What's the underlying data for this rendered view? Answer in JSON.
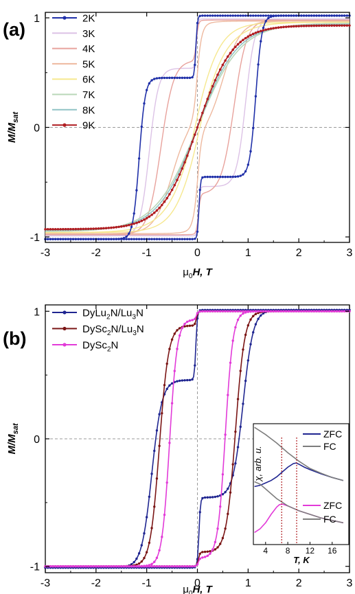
{
  "chart_data": [
    {
      "panel_label": "(a)",
      "type": "line",
      "ylabel": "M/M_sat",
      "ylabel_main": "M/M",
      "ylabel_sub": "sat",
      "xlabel": "μ0H, T",
      "xlabel_prefix": "μ",
      "xlabel_sub": "0",
      "xlabel_main": "H, T",
      "xlim": [
        -3,
        3
      ],
      "ylim": [
        -1.05,
        1.05
      ],
      "x_ticks": [
        "-3",
        "-2",
        "-1",
        "0",
        "1",
        "2",
        "3"
      ],
      "y_ticks": [
        "-1",
        "0",
        "1"
      ],
      "zero_lines": true,
      "legend_position": "top-left",
      "series": [
        {
          "name": "2K",
          "color": "#1f2fa8",
          "markers": true,
          "Ms": 1.02,
          "Hc": 0.03,
          "w": 0.03,
          "a": 0.27,
          "Hc2": 1.15,
          "w2": 0.12,
          "a2": 0.7,
          "b": 0.0
        },
        {
          "name": "3K",
          "color": "#dcc2e6",
          "markers": false,
          "Ms": 0.99,
          "Hc": 0.02,
          "w": 0.03,
          "a": 0.2,
          "Hc2": 0.95,
          "w2": 0.18,
          "a2": 0.68,
          "b": 0.0
        },
        {
          "name": "4K",
          "color": "#e8a29c",
          "markers": false,
          "Ms": 0.98,
          "Hc": 0.02,
          "w": 0.04,
          "a": 0.15,
          "Hc2": 0.72,
          "w2": 0.25,
          "a2": 0.65,
          "b": 0.0
        },
        {
          "name": "5K",
          "color": "#eeb89e",
          "markers": false,
          "Ms": 0.97,
          "Hc": 0.01,
          "w": 0.05,
          "a": 0.1,
          "Hc2": 0.5,
          "w2": 0.35,
          "a2": 0.55,
          "b": 0.1
        },
        {
          "name": "6K",
          "color": "#f6e88f",
          "markers": false,
          "Ms": 0.96,
          "Hc": 0.0,
          "w": 0.1,
          "a": 0.03,
          "Hc2": 0.25,
          "w2": 0.7,
          "a2": 0.3,
          "b": 0.45
        },
        {
          "name": "7K",
          "color": "#b9d7b8",
          "markers": false,
          "Ms": 0.95,
          "Hc": 0.0,
          "w": 0.2,
          "a": 0.0,
          "Hc2": 0.0,
          "w2": 1.0,
          "a2": 0.0,
          "b": 0.85
        },
        {
          "name": "8K",
          "color": "#8fc2c5",
          "markers": false,
          "Ms": 0.94,
          "Hc": 0.0,
          "w": 0.2,
          "a": 0.0,
          "Hc2": 0.0,
          "w2": 1.0,
          "a2": 0.0,
          "b": 0.78
        },
        {
          "name": "9K",
          "color": "#b01e22",
          "markers": true,
          "Ms": 0.93,
          "Hc": 0.0,
          "w": 0.2,
          "a": 0.0,
          "Hc2": 0.0,
          "w2": 1.0,
          "a2": 0.0,
          "b": 0.7
        }
      ]
    },
    {
      "panel_label": "(b)",
      "type": "line",
      "ylabel": "M/M_sat",
      "ylabel_main": "M/M",
      "ylabel_sub": "sat",
      "xlabel": "μ0H, T",
      "xlabel_prefix": "μ",
      "xlabel_sub": "0",
      "xlabel_main": "H, T",
      "xlim": [
        -3,
        3
      ],
      "ylim": [
        -1.05,
        1.05
      ],
      "x_ticks": [
        "-3",
        "-2",
        "-1",
        "0",
        "1",
        "2",
        "3"
      ],
      "y_ticks": [
        "-1",
        "0",
        "1"
      ],
      "zero_lines": true,
      "legend_position": "top-left",
      "series": [
        {
          "label_parts": [
            [
              "DyLu",
              ""
            ],
            [
              "2",
              "sub"
            ],
            [
              "N/Lu",
              ""
            ],
            [
              "3",
              "sub"
            ],
            [
              "N",
              ""
            ]
          ],
          "name": "DyLu2N/Lu3N",
          "color": "#1f2590",
          "markers": true,
          "Ms": 1.01,
          "Hc": 0.03,
          "w": 0.03,
          "a": 0.25,
          "Hc2": 0.9,
          "w2": 0.2,
          "a2": 0.67,
          "b": 0.0
        },
        {
          "label_parts": [
            [
              "DySc",
              ""
            ],
            [
              "2",
              "sub"
            ],
            [
              "N/Lu",
              ""
            ],
            [
              "3",
              "sub"
            ],
            [
              "N",
              ""
            ]
          ],
          "name": "DySc2N/Lu3N",
          "color": "#7a1414",
          "markers": true,
          "Ms": 1.0,
          "Hc": 0.02,
          "w": 0.03,
          "a": 0.05,
          "Hc2": 0.75,
          "w2": 0.18,
          "a2": 0.85,
          "b": 0.0
        },
        {
          "label_parts": [
            [
              "DySc",
              ""
            ],
            [
              "2",
              "sub"
            ],
            [
              "N",
              ""
            ]
          ],
          "name": "DySc2N",
          "color": "#e23ad8",
          "markers": true,
          "Ms": 1.0,
          "Hc": 0.02,
          "w": 0.03,
          "a": 0.03,
          "Hc2": 0.55,
          "w2": 0.15,
          "a2": 0.9,
          "b": 0.0
        }
      ],
      "inset": {
        "type": "line",
        "xlabel": "T, K",
        "ylabel": "χ, arb. u.",
        "x_ticks": [
          "4",
          "8",
          "12",
          "16"
        ],
        "xlim": [
          1.8,
          19
        ],
        "ylim": [
          0,
          1
        ],
        "series": [
          {
            "name": "ZFC",
            "color": "#1f2590",
            "group": "upper",
            "x": [
              2,
              3,
              4,
              5,
              6,
              7,
              8,
              9,
              9.5,
              10,
              11,
              12,
              14,
              16,
              18
            ],
            "y": [
              0.48,
              0.49,
              0.51,
              0.53,
              0.56,
              0.6,
              0.64,
              0.67,
              0.675,
              0.665,
              0.64,
              0.62,
              0.585,
              0.555,
              0.53
            ]
          },
          {
            "name": "FC",
            "color": "#7d7d7d",
            "group": "upper",
            "x": [
              2,
              4,
              6,
              8,
              10,
              12,
              14,
              16,
              18
            ],
            "y": [
              0.97,
              0.91,
              0.84,
              0.76,
              0.69,
              0.63,
              0.59,
              0.555,
              0.53
            ]
          },
          {
            "name": "ZFC",
            "color": "#e23ad8",
            "group": "lower",
            "x": [
              2,
              3,
              4,
              5,
              6,
              6.5,
              7,
              8,
              9,
              10,
              12,
              14,
              16,
              18
            ],
            "y": [
              0.1,
              0.13,
              0.18,
              0.25,
              0.31,
              0.33,
              0.335,
              0.32,
              0.3,
              0.28,
              0.25,
              0.22,
              0.2,
              0.18
            ]
          },
          {
            "name": "FC",
            "color": "#7d7d7d",
            "group": "lower",
            "x": [
              2,
              3,
              4,
              6,
              8,
              10,
              12,
              14,
              16,
              18
            ],
            "y": [
              0.52,
              0.5,
              0.46,
              0.38,
              0.32,
              0.28,
              0.25,
              0.22,
              0.2,
              0.18
            ]
          }
        ],
        "markers_at": [
          {
            "x": 9.6,
            "color": "#b01e22"
          },
          {
            "x": 6.9,
            "color": "#b01e22"
          }
        ]
      }
    }
  ]
}
